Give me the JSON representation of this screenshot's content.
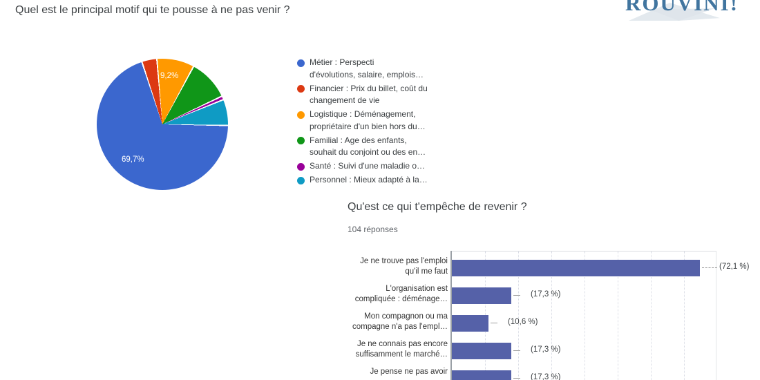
{
  "question1_title": "Quel est le principal motif qui te pousse à ne pas venir ?",
  "logo_text": "ROUVINI!",
  "chart_data": [
    {
      "type": "pie",
      "title": "Quel est le principal motif qui te pousse à ne pas venir ?",
      "legend_position": "right",
      "start_angle_deg": -17.5,
      "draw_order": [
        1,
        2,
        3,
        4,
        5,
        0
      ],
      "slices": [
        {
          "legend_lines": [
            "Métier : Perspecti",
            "d'évolutions, salaire, emplois…"
          ],
          "value_pct": 69.7,
          "display_label": "69,7%",
          "color": "#3B67CE"
        },
        {
          "legend_lines": [
            "Financier : Prix du billet, coût du",
            "changement de vie"
          ],
          "value_pct": 3.7,
          "display_label": "",
          "color": "#DC3912"
        },
        {
          "legend_lines": [
            "Logistique : Déménagement,",
            "propriétaire d'un bien hors du…"
          ],
          "value_pct": 9.2,
          "display_label": "9,2%",
          "color": "#FF9900"
        },
        {
          "legend_lines": [
            "Familial : Age des enfants,",
            "souhait du conjoint ou des en…"
          ],
          "value_pct": 10.1,
          "display_label": "",
          "color": "#109618"
        },
        {
          "legend_lines": [
            "Santé : Suivi d'une maladie o…"
          ],
          "value_pct": 0.9,
          "display_label": "",
          "color": "#990099"
        },
        {
          "legend_lines": [
            "Personnel : Mieux adapté à la…"
          ],
          "value_pct": 6.4,
          "display_label": "",
          "color": "#0F9BC4"
        }
      ]
    },
    {
      "type": "bar",
      "orientation": "horizontal",
      "title": "Qu'est ce qui t'empêche de revenir ?",
      "subtitle": "104 réponses",
      "bar_color": "#5561A8",
      "xlim": [
        0,
        100
      ],
      "grid": "vertical-dotted",
      "categories": [
        [
          "Je ne trouve pas l'emploi",
          "qu'il me faut"
        ],
        [
          "L'organisation est",
          "compliquée : déménage…"
        ],
        [
          "Mon compagnon ou ma",
          "compagne n'a pas l'empl…"
        ],
        [
          "Je ne connais pas encore",
          "suffisamment le marché…"
        ],
        [
          "Je pense ne pas avoir"
        ]
      ],
      "values": [
        72.1,
        17.3,
        10.6,
        17.3,
        17.3
      ],
      "value_labels": [
        "(72,1 %)",
        "(17,3 %)",
        "(10,6 %)",
        "(17,3 %)",
        "(17,3 %)"
      ]
    }
  ]
}
